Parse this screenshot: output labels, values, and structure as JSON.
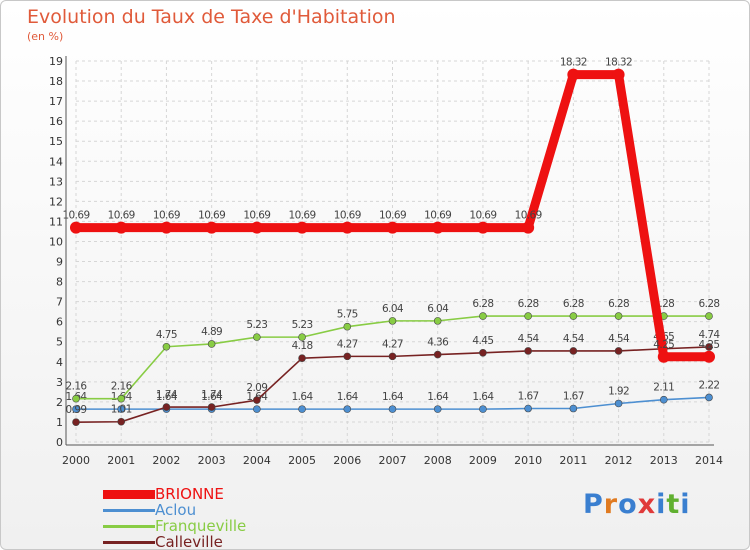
{
  "chart_data": {
    "type": "line",
    "title": "Evolution du Taux de Taxe d'Habitation",
    "subtitle": "(en %)",
    "categories": [
      "2000",
      "2001",
      "2002",
      "2003",
      "2004",
      "2005",
      "2006",
      "2007",
      "2008",
      "2009",
      "2010",
      "2011",
      "2012",
      "2013",
      "2014"
    ],
    "ylim": [
      0,
      19
    ],
    "yticks": [
      "0",
      "1",
      "2",
      "3",
      "4",
      "5",
      "6",
      "7",
      "8",
      "9",
      "10",
      "11",
      "12",
      "13",
      "14",
      "15",
      "16",
      "17",
      "18",
      "19"
    ],
    "grid": true,
    "legend_position": "bottom-left",
    "series": [
      {
        "name": "BRIONNE",
        "color": "#ee1111",
        "values": [
          10.69,
          10.69,
          10.69,
          10.69,
          10.69,
          10.69,
          10.69,
          10.69,
          10.69,
          10.69,
          10.69,
          18.32,
          18.32,
          4.25,
          4.25
        ],
        "labels": [
          "10.69",
          "10.69",
          "10.69",
          "10.69",
          "10.69",
          "10.69",
          "10.69",
          "10.69",
          "10.69",
          "10.69",
          "10.69",
          "18.32",
          "18.32",
          "4.25",
          "4.25"
        ]
      },
      {
        "name": "Aclou",
        "color": "#4d8fd1",
        "values": [
          1.64,
          1.64,
          1.64,
          1.64,
          1.64,
          1.64,
          1.64,
          1.64,
          1.64,
          1.64,
          1.67,
          1.67,
          1.92,
          2.11,
          2.22
        ],
        "labels": [
          "1.64",
          "1.64",
          "1.64",
          "1.64",
          "1.64",
          "1.64",
          "1.64",
          "1.64",
          "1.64",
          "1.64",
          "1.67",
          "1.67",
          "1.92",
          "2.11",
          "2.22"
        ]
      },
      {
        "name": "Franqueville",
        "color": "#88cc44",
        "values": [
          2.16,
          2.16,
          4.75,
          4.89,
          5.23,
          5.23,
          5.75,
          6.04,
          6.04,
          6.28,
          6.28,
          6.28,
          6.28,
          6.28,
          6.28
        ],
        "labels": [
          "2.16",
          "2.16",
          "4.75",
          "4.89",
          "5.23",
          "5.23",
          "5.75",
          "6.04",
          "6.04",
          "6.28",
          "6.28",
          "6.28",
          "6.28",
          "6.28",
          "6.28"
        ]
      },
      {
        "name": "Calleville",
        "color": "#772222",
        "values": [
          0.99,
          1.01,
          1.74,
          1.74,
          2.09,
          4.18,
          4.27,
          4.27,
          4.36,
          4.45,
          4.54,
          4.54,
          4.54,
          4.65,
          4.74
        ],
        "labels": [
          "0.99",
          "1.01",
          "1.74",
          "1.74",
          "2.09",
          "4.18",
          "4.27",
          "4.27",
          "4.36",
          "4.45",
          "4.54",
          "4.54",
          "4.54",
          "4.65",
          "4.74"
        ]
      }
    ]
  },
  "branding": {
    "logo_letters": [
      "P",
      "r",
      "o",
      "x",
      "i",
      "t",
      "i"
    ]
  }
}
